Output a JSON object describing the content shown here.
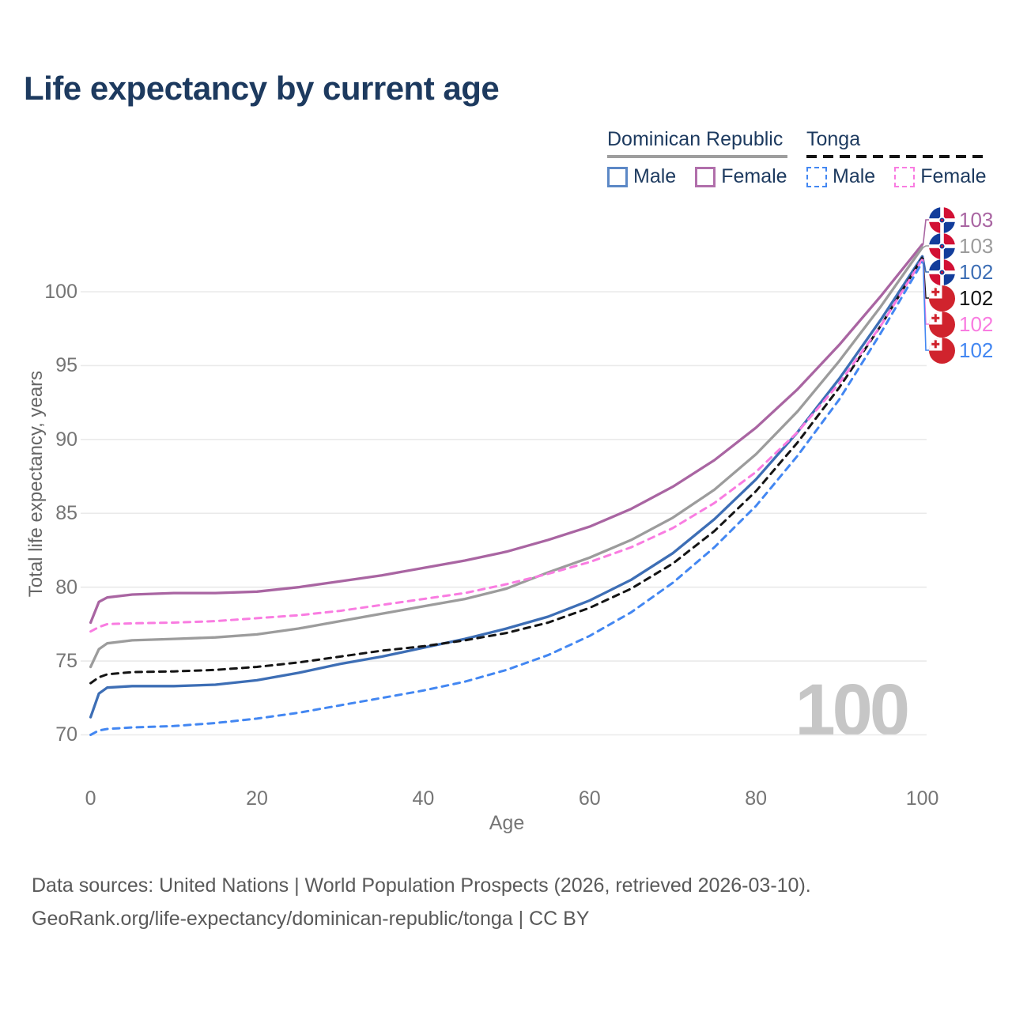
{
  "title": "Life expectancy by current age",
  "legend": {
    "groups": [
      {
        "name": "Dominican Republic",
        "line_style": "solid",
        "underline_color": "#9e9e9e",
        "items": [
          {
            "label": "Male",
            "color": "#5c88c6",
            "dashed": false
          },
          {
            "label": "Female",
            "color": "#b16fab",
            "dashed": false
          }
        ]
      },
      {
        "name": "Tonga",
        "line_style": "dashed",
        "underline_color": "#141414",
        "items": [
          {
            "label": "Male",
            "color": "#4387f2",
            "dashed": true
          },
          {
            "label": "Female",
            "color": "#f97ce1",
            "dashed": true
          }
        ]
      }
    ]
  },
  "chart_data": {
    "type": "line",
    "title": "Life expectancy by current age",
    "xlabel": "Age",
    "ylabel": "Total life expectancy, years",
    "xticks": [
      0,
      20,
      40,
      60,
      80,
      100
    ],
    "yticks": [
      70,
      75,
      80,
      85,
      90,
      95,
      100
    ],
    "xlim": [
      0,
      100
    ],
    "ylim": [
      69,
      104
    ],
    "grid": "horizontal",
    "legend_position": "top-right",
    "x": [
      0,
      1,
      2,
      5,
      10,
      15,
      20,
      25,
      30,
      35,
      40,
      45,
      50,
      55,
      60,
      65,
      70,
      75,
      80,
      85,
      90,
      95,
      100
    ],
    "series": [
      {
        "name": "Dominican Republic — Female",
        "country": "Dominican Republic",
        "flag": "do",
        "color": "#a965a2",
        "dashed": false,
        "end_label": "103",
        "values": [
          77.6,
          79.0,
          79.3,
          79.5,
          79.6,
          79.6,
          79.7,
          80.0,
          80.4,
          80.8,
          81.3,
          81.8,
          82.4,
          83.2,
          84.1,
          85.3,
          86.8,
          88.6,
          90.8,
          93.4,
          96.4,
          99.7,
          103.2
        ]
      },
      {
        "name": "Dominican Republic — Both sexes",
        "country": "Dominican Republic",
        "flag": "do",
        "color": "#9c9c9c",
        "dashed": false,
        "end_label": "103",
        "values": [
          74.6,
          75.8,
          76.2,
          76.4,
          76.5,
          76.6,
          76.8,
          77.2,
          77.7,
          78.2,
          78.7,
          79.2,
          79.9,
          81.0,
          82.0,
          83.2,
          84.7,
          86.6,
          89.0,
          91.9,
          95.3,
          99.0,
          103.0
        ]
      },
      {
        "name": "Dominican Republic — Male",
        "country": "Dominican Republic",
        "flag": "do",
        "color": "#3d6eb5",
        "dashed": false,
        "end_label": "102",
        "values": [
          71.2,
          72.8,
          73.2,
          73.3,
          73.3,
          73.4,
          73.7,
          74.2,
          74.8,
          75.3,
          75.9,
          76.5,
          77.2,
          78.0,
          79.1,
          80.5,
          82.3,
          84.6,
          87.3,
          90.5,
          94.1,
          98.1,
          102.4
        ]
      },
      {
        "name": "Tonga — Both sexes",
        "country": "Tonga",
        "flag": "to",
        "color": "#141414",
        "dashed": true,
        "end_label": "102",
        "values": [
          73.5,
          73.9,
          74.1,
          74.25,
          74.3,
          74.4,
          74.6,
          74.9,
          75.3,
          75.7,
          76.0,
          76.4,
          76.9,
          77.6,
          78.6,
          79.9,
          81.6,
          83.8,
          86.5,
          89.8,
          93.5,
          97.7,
          102.3
        ]
      },
      {
        "name": "Tonga — Female",
        "country": "Tonga",
        "flag": "to",
        "color": "#f97ce1",
        "dashed": true,
        "end_label": "102",
        "values": [
          77.0,
          77.3,
          77.5,
          77.55,
          77.6,
          77.7,
          77.9,
          78.1,
          78.4,
          78.8,
          79.2,
          79.6,
          80.2,
          80.9,
          81.7,
          82.7,
          84.0,
          85.7,
          87.8,
          90.5,
          93.8,
          97.7,
          102.2
        ]
      },
      {
        "name": "Tonga — Male",
        "country": "Tonga",
        "flag": "to",
        "color": "#4387f2",
        "dashed": true,
        "end_label": "102",
        "values": [
          70.0,
          70.3,
          70.4,
          70.5,
          70.6,
          70.8,
          71.1,
          71.5,
          72.0,
          72.5,
          73.0,
          73.6,
          74.4,
          75.4,
          76.7,
          78.3,
          80.3,
          82.7,
          85.5,
          88.9,
          92.7,
          97.2,
          102.0
        ]
      }
    ]
  },
  "watermark": "100",
  "footer": {
    "line1": "Data sources: United Nations | World Population Prospects (2026, retrieved 2026-03-10).",
    "line2": "GeoRank.org/life-expectancy/dominican-republic/tonga | CC BY"
  }
}
